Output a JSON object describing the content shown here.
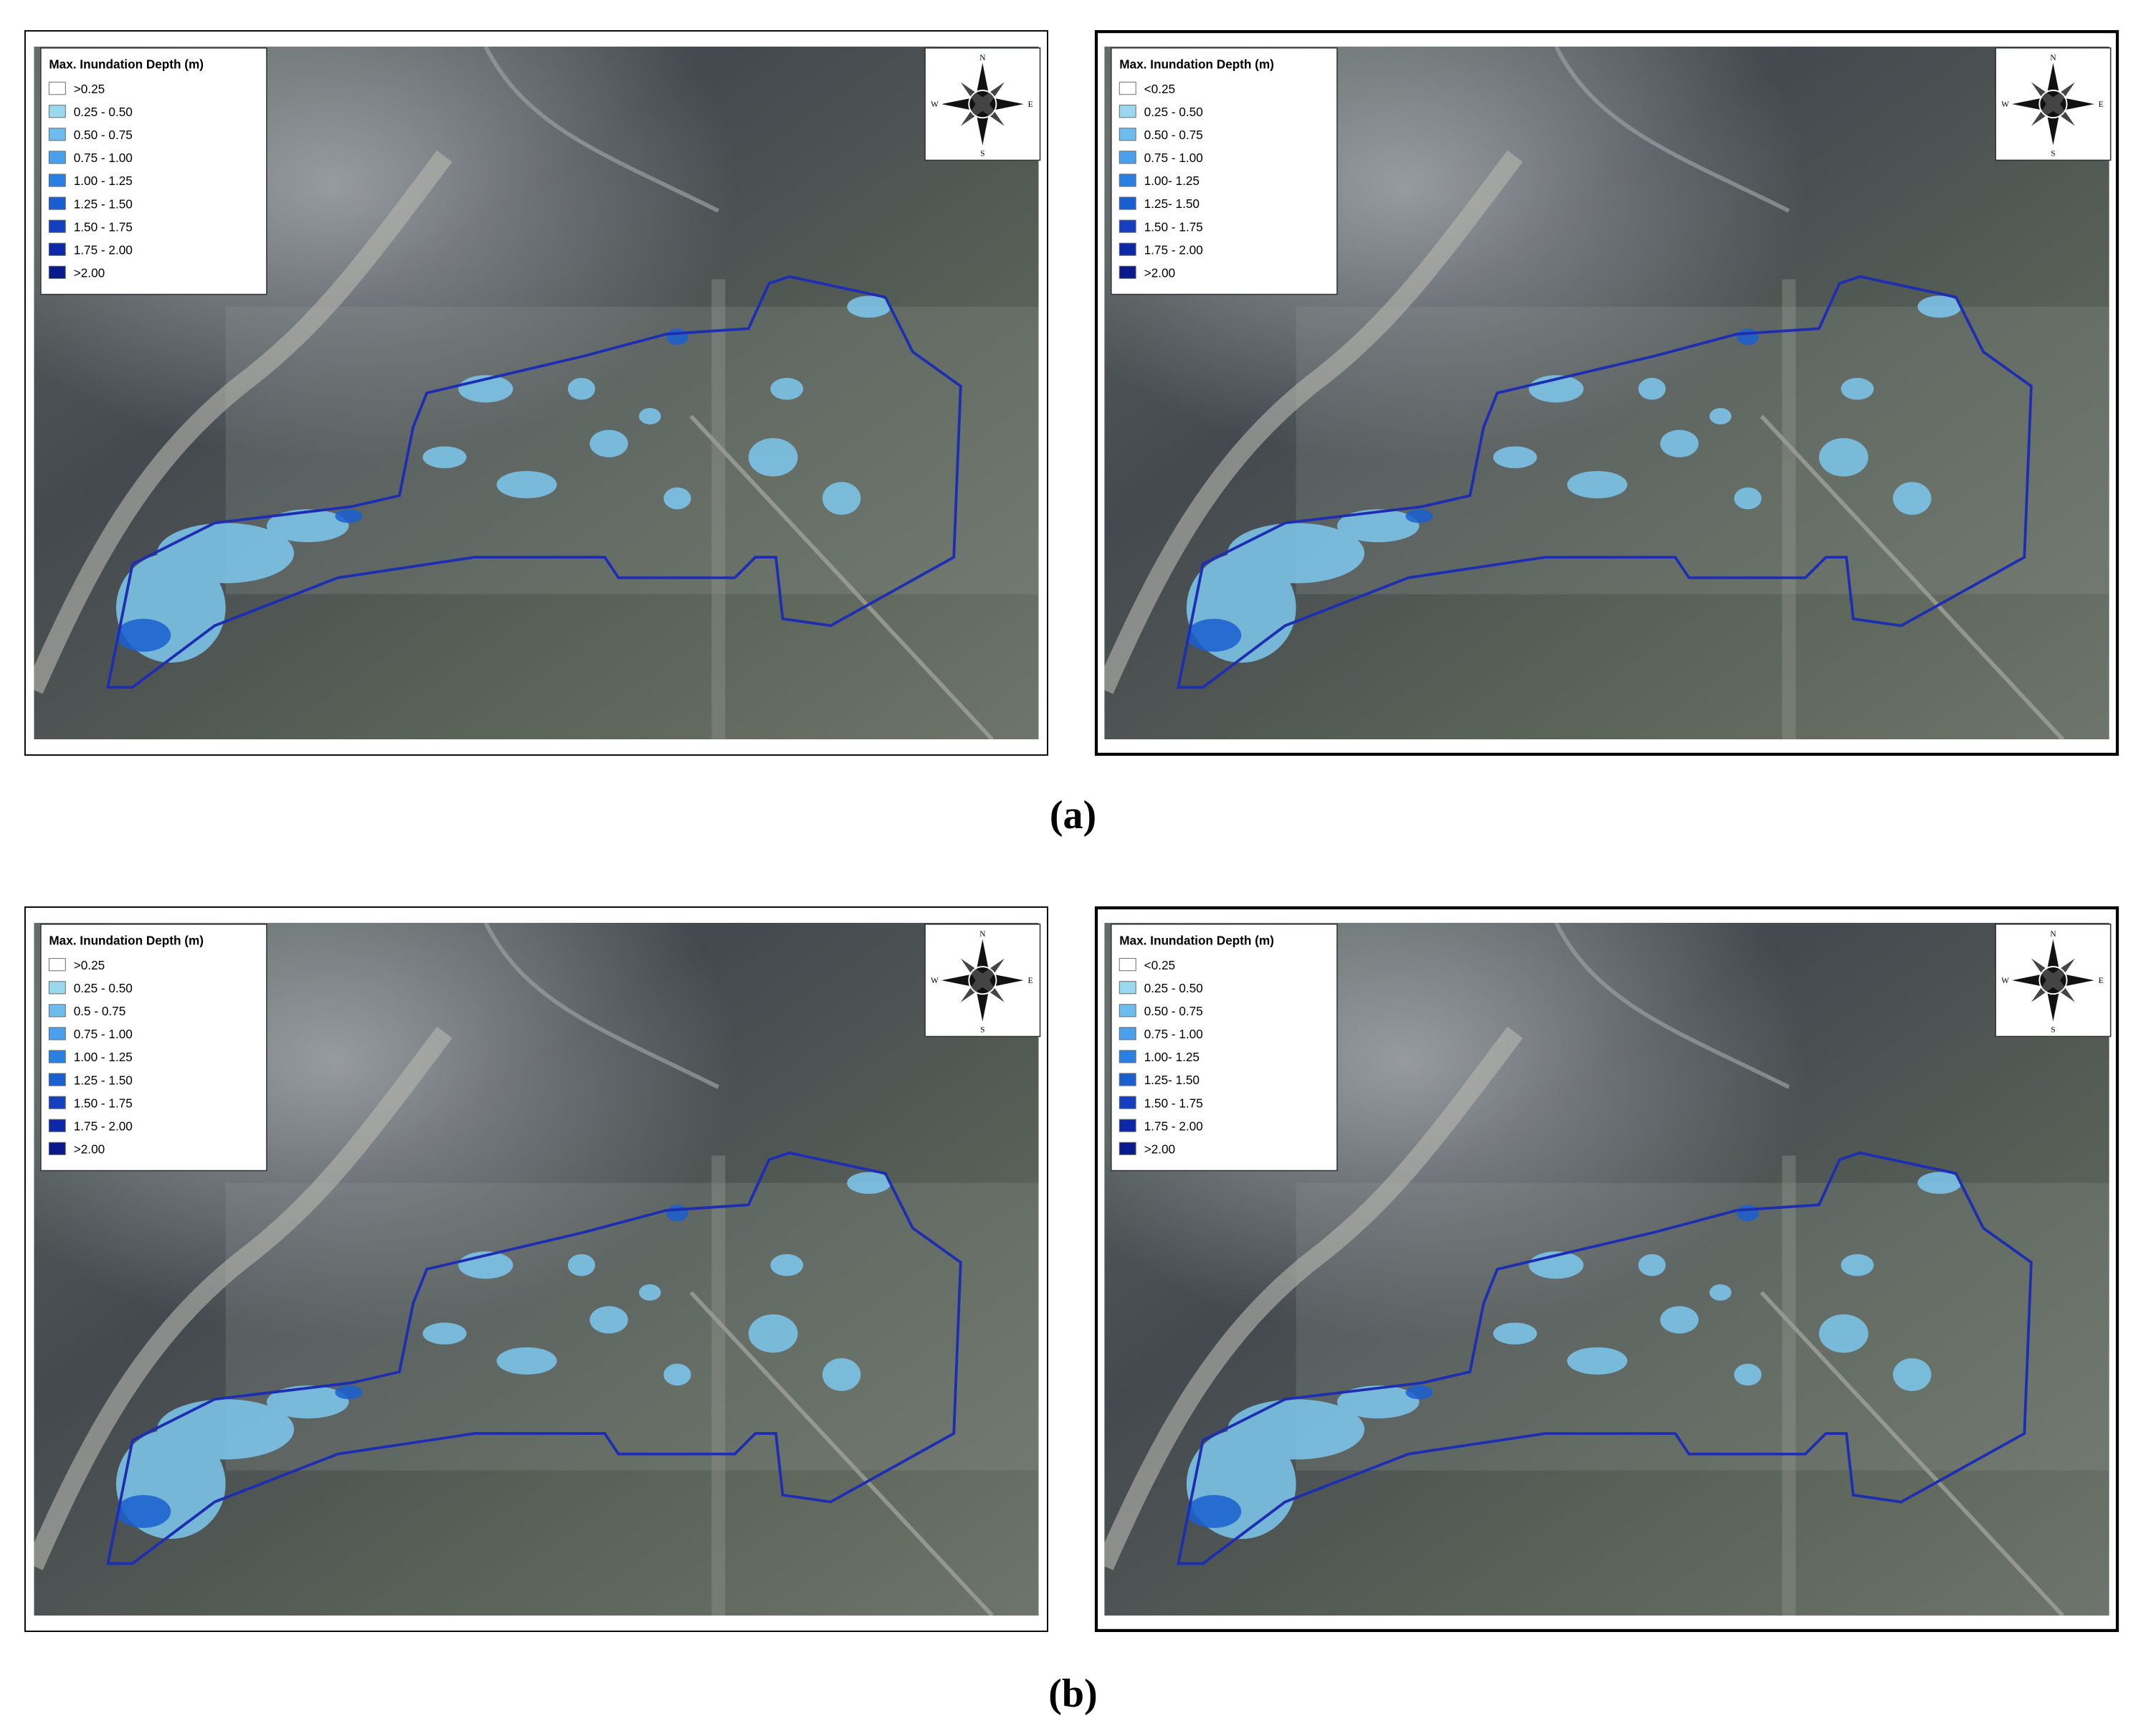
{
  "panels": [
    {
      "legend_title": "Max. Inundation Depth (m)",
      "legend_items": [
        ">0.25",
        "0.25 - 0.50",
        "0.50 - 0.75",
        "0.75 - 1.00",
        "1.00 - 1.25",
        "1.25 - 1.50",
        "1.50 - 1.75",
        "1.75 - 2.00",
        ">2.00"
      ],
      "compass": {
        "n": "N",
        "e": "E",
        "s": "S",
        "w": "W"
      }
    },
    {
      "legend_title": "Max. Inundation Depth (m)",
      "legend_items": [
        "<0.25",
        "0.25 - 0.50",
        "0.50 - 0.75",
        "0.75 - 1.00",
        "1.00- 1.25",
        "1.25- 1.50",
        "1.50 - 1.75",
        "1.75 - 2.00",
        ">2.00"
      ],
      "compass": {
        "n": "N",
        "e": "E",
        "s": "S",
        "w": "W"
      }
    },
    {
      "legend_title": "Max. Inundation Depth (m)",
      "legend_items": [
        ">0.25",
        "0.25 - 0.50",
        "0.5 - 0.75",
        "0.75 - 1.00",
        "1.00 - 1.25",
        "1.25 - 1.50",
        "1.50 - 1.75",
        "1.75 - 2.00",
        ">2.00"
      ],
      "compass": {
        "n": "N",
        "e": "E",
        "s": "S",
        "w": "W"
      }
    },
    {
      "legend_title": "Max. Inundation Depth (m)",
      "legend_items": [
        "<0.25",
        "0.25 - 0.50",
        "0.50 - 0.75",
        "0.75 - 1.00",
        "1.00- 1.25",
        "1.25- 1.50",
        "1.50 - 1.75",
        "1.75 - 2.00",
        ">2.00"
      ],
      "compass": {
        "n": "N",
        "e": "E",
        "s": "S",
        "w": "W"
      }
    }
  ],
  "legend_colors": [
    "#ffffff",
    "#9ad8f0",
    "#6cbcee",
    "#4aa0ea",
    "#2a80e0",
    "#1a5fd0",
    "#1440c0",
    "#0c28a8",
    "#0a1a8c"
  ],
  "captions": [
    "(a)",
    "(b)"
  ]
}
